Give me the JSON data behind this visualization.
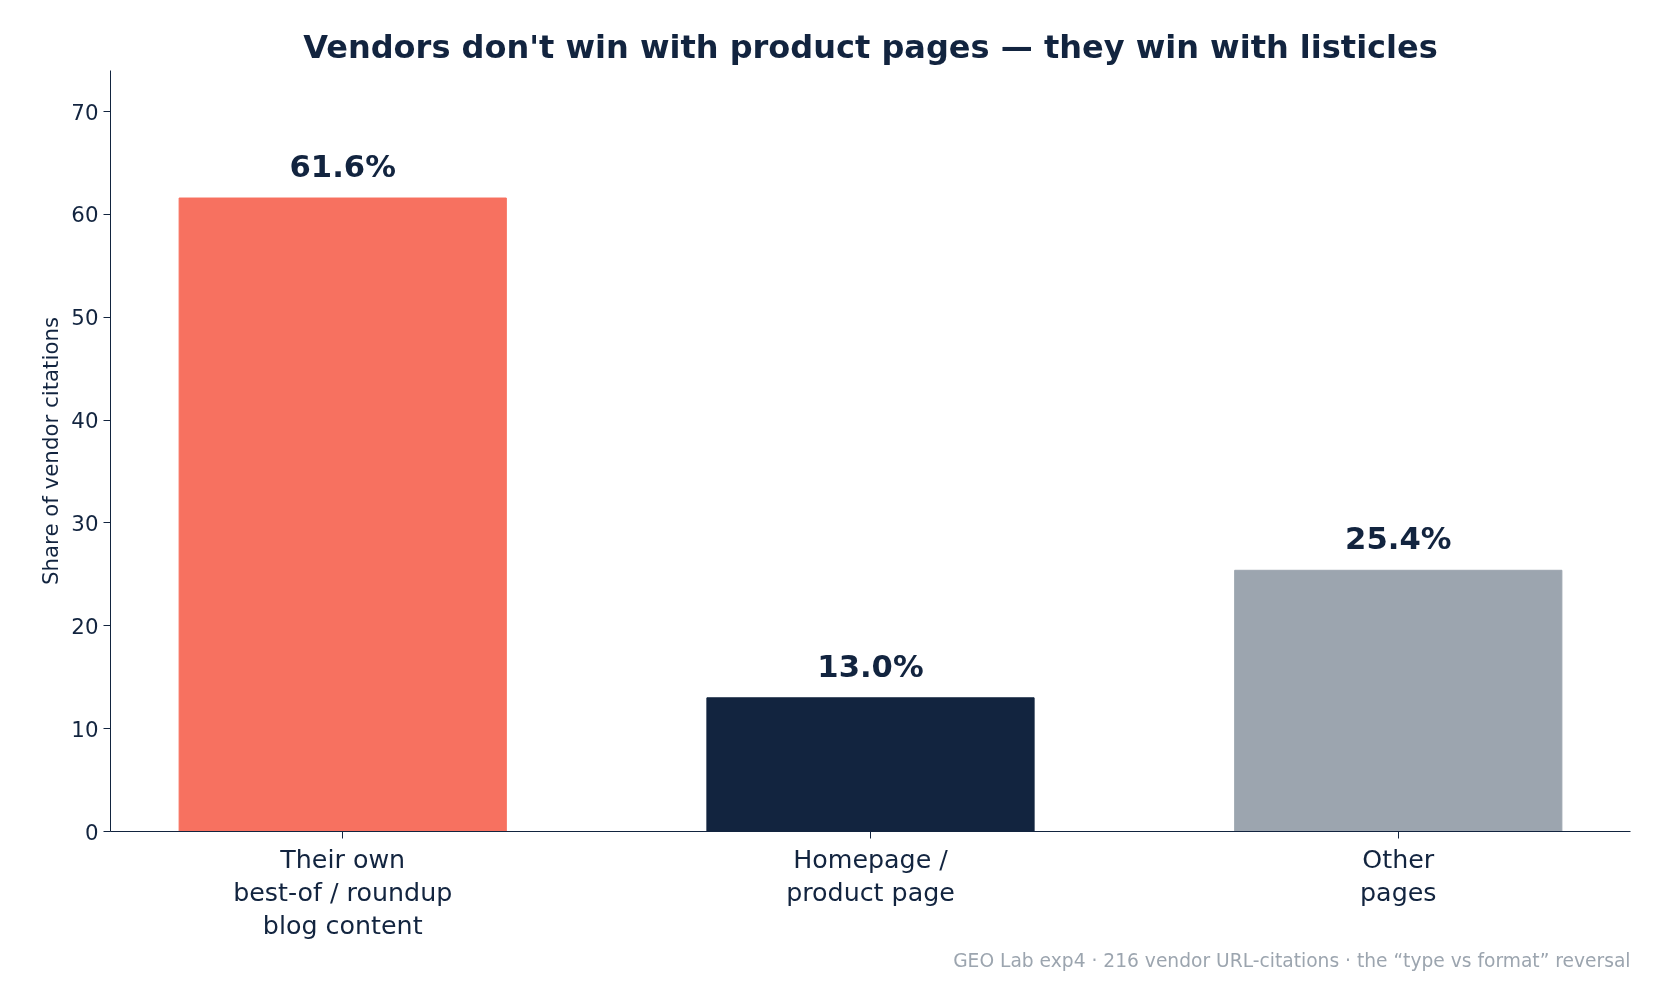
{
  "chart_data": {
    "type": "bar",
    "title": "Vendors don't win with product pages — they win with listicles",
    "ylabel": "Share of vendor citations",
    "categories": [
      "Their own\nbest-of / roundup\nblog content",
      "Homepage /\nproduct page",
      "Other\npages"
    ],
    "values": [
      61.6,
      13.0,
      25.4
    ],
    "colors": [
      "#f77160",
      "#12243f",
      "#9ca5af"
    ],
    "value_labels": [
      "61.6%",
      "13.0%",
      "25.4%"
    ],
    "ylim": [
      0,
      74
    ],
    "yticks": [
      0,
      10,
      20,
      30,
      40,
      50,
      60,
      70
    ],
    "grid": false,
    "annotations": [
      "GEO Lab exp4 · 216 vendor URL-citations · the “type vs format” reversal"
    ]
  }
}
